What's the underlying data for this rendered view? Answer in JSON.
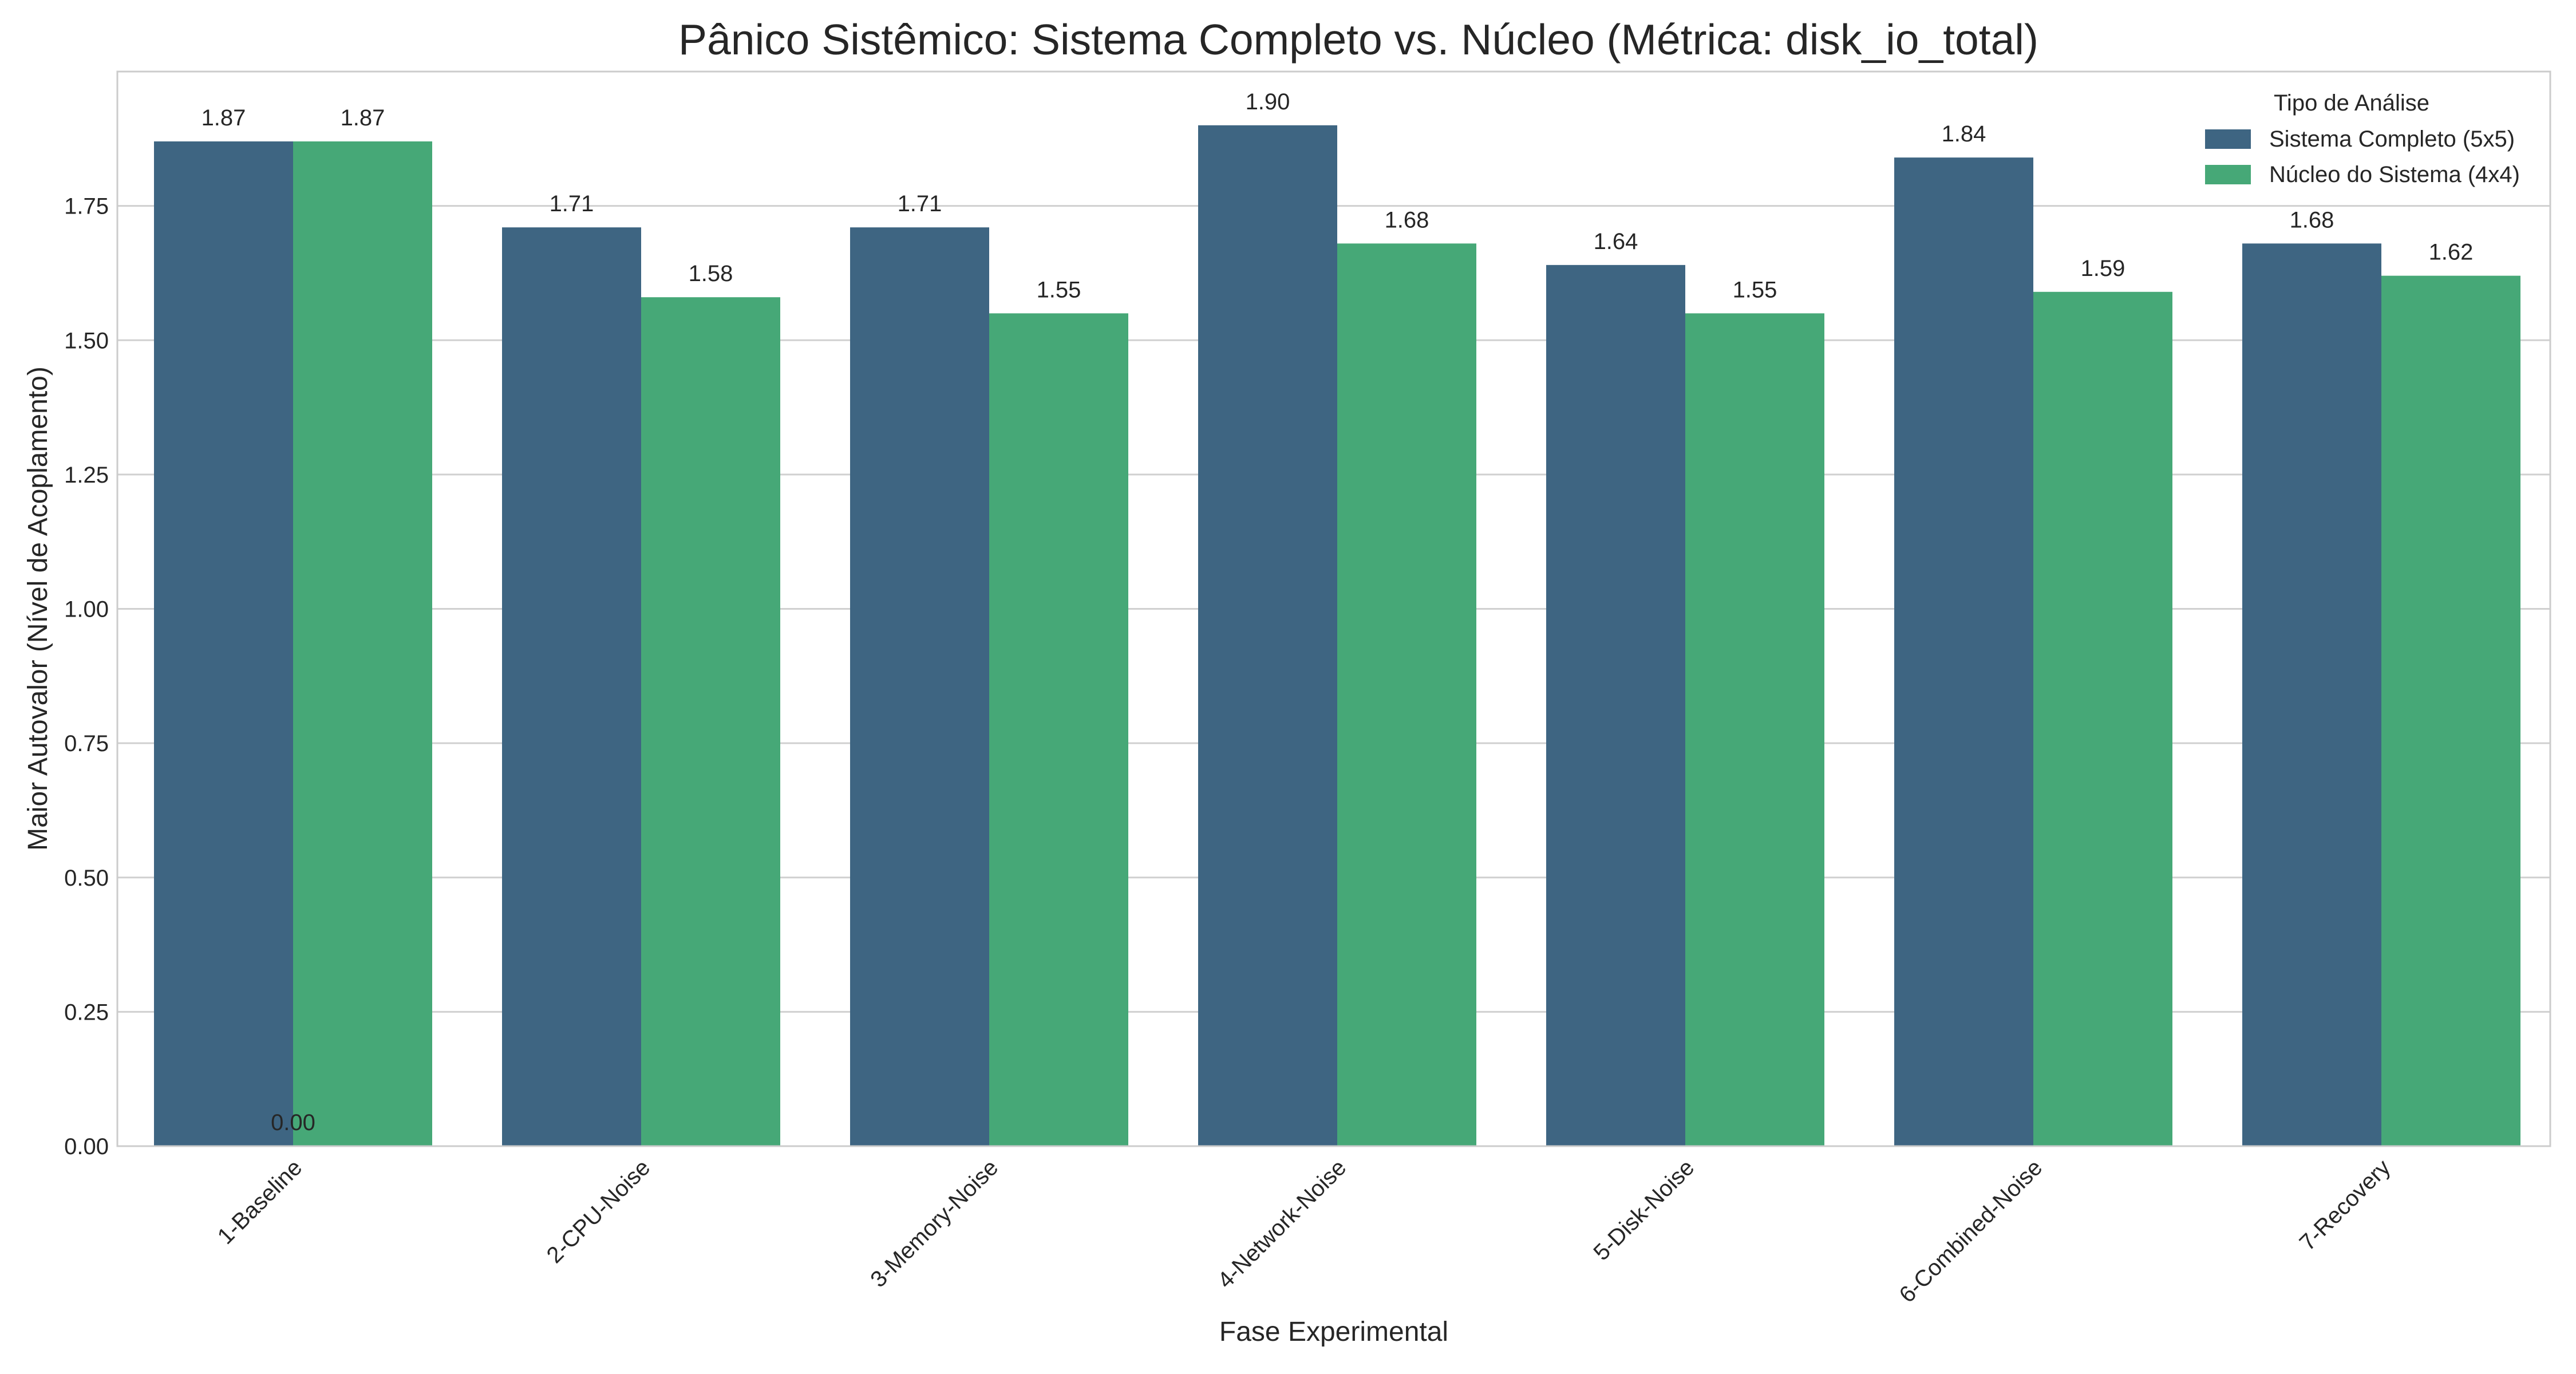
{
  "chart_data": {
    "type": "bar",
    "title": "Pânico Sistêmico: Sistema Completo vs. Núcleo (Métrica: disk_io_total)",
    "xlabel": "Fase Experimental",
    "ylabel": "Maior Autovalor (Nível de Acoplamento)",
    "categories": [
      "1-Baseline",
      "2-CPU-Noise",
      "3-Memory-Noise",
      "4-Network-Noise",
      "5-Disk-Noise",
      "6-Combined-Noise",
      "7-Recovery"
    ],
    "series": [
      {
        "name": "Sistema Completo (5x5)",
        "color": "#3e6582",
        "values": [
          1.87,
          1.71,
          1.71,
          1.9,
          1.64,
          1.84,
          1.68
        ],
        "labels": [
          "1.87",
          "1.71",
          "1.71",
          "1.90",
          "1.64",
          "1.84",
          "1.68"
        ]
      },
      {
        "name": "Núcleo do Sistema (4x4)",
        "color": "#46a877",
        "values": [
          1.87,
          1.58,
          1.55,
          1.68,
          1.55,
          1.59,
          1.62
        ],
        "labels": [
          "1.87",
          "1.58",
          "1.55",
          "1.68",
          "1.55",
          "1.59",
          "1.62"
        ]
      }
    ],
    "extra_annotation": {
      "text": "0.00",
      "category_index": 0,
      "value": 0.0
    },
    "ylim": [
      0,
      2.0
    ],
    "yticks": [
      0.0,
      0.25,
      0.5,
      0.75,
      1.0,
      1.25,
      1.5,
      1.75
    ],
    "ytick_labels": [
      "0.00",
      "0.25",
      "0.50",
      "0.75",
      "1.00",
      "1.25",
      "1.50",
      "1.75"
    ],
    "grid": "horizontal",
    "legend": {
      "title": "Tipo de Análise",
      "placement": "top-right"
    }
  }
}
